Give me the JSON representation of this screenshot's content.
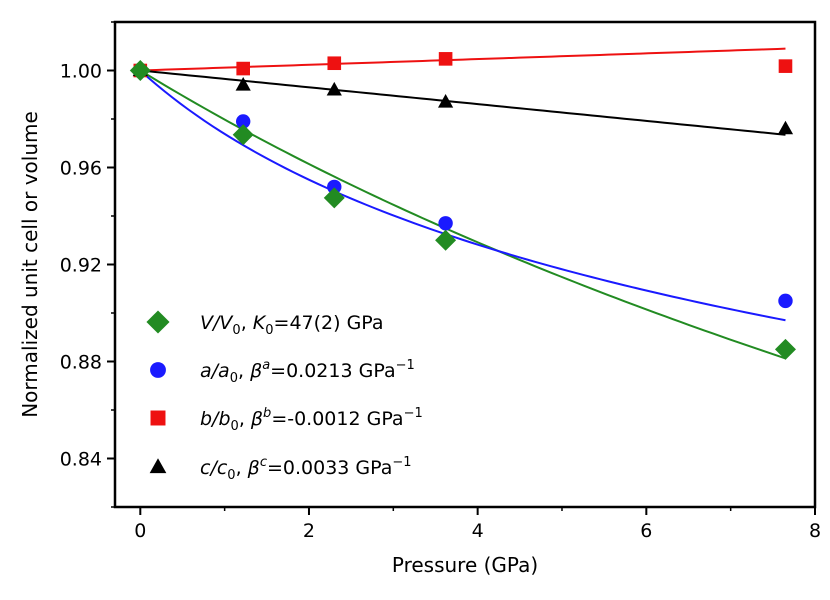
{
  "chart_data": {
    "type": "scatter",
    "xlabel": "Pressure (GPa)",
    "ylabel": "Normalized unit cell or volume",
    "xlim": [
      -0.3,
      8
    ],
    "ylim": [
      0.82,
      1.02
    ],
    "xticks": [
      0,
      2,
      4,
      6,
      8
    ],
    "xtick_labels": [
      "0",
      "2",
      "4",
      "6",
      "8"
    ],
    "yticks": [
      0.84,
      0.88,
      0.92,
      0.96,
      1.0
    ],
    "ytick_labels": [
      "0.84",
      "0.88",
      "0.92",
      "0.96",
      "1.00"
    ],
    "grid": false,
    "legend_position": "lower-left",
    "series": [
      {
        "key": "V",
        "marker": "diamond",
        "color": "#228B22",
        "legend": {
          "ratio": "V/V",
          "sub": "0",
          "rest_pre": ", K",
          "rest_sub": "0",
          "rest_post": "=47(2) GPa"
        },
        "x": [
          0,
          1.22,
          2.3,
          3.62,
          7.65
        ],
        "y": [
          1.0,
          0.9735,
          0.9475,
          0.93,
          0.885
        ],
        "fit": {
          "kind": "birch-murnaghan",
          "K0": 47,
          "Kp": 4
        }
      },
      {
        "key": "a",
        "marker": "circle",
        "color": "#1a1aff",
        "legend": {
          "ratio": "a/a",
          "sub": "0",
          "beta": "a",
          "value": "=0.0213 GPa"
        },
        "x": [
          0,
          1.22,
          2.3,
          3.62,
          7.65
        ],
        "y": [
          1.0,
          0.979,
          0.952,
          0.937,
          0.905
        ],
        "fit": {
          "kind": "power",
          "y_end": 0.897
        }
      },
      {
        "key": "b",
        "marker": "square",
        "color": "#ee1111",
        "legend": {
          "ratio": "b/b",
          "sub": "0",
          "beta": "b",
          "value": "=-0.0012 GPa"
        },
        "x": [
          0,
          1.22,
          2.3,
          3.62,
          7.65
        ],
        "y": [
          1.0,
          1.0008,
          1.003,
          1.0048,
          1.0018
        ],
        "fit": {
          "kind": "linear",
          "y_end": 1.009
        }
      },
      {
        "key": "c",
        "marker": "triangle",
        "color": "#000000",
        "legend": {
          "ratio": "c/c",
          "sub": "0",
          "beta": "c",
          "value": "=0.0033 GPa"
        },
        "x": [
          0,
          1.22,
          2.3,
          3.62,
          7.65
        ],
        "y": [
          1.0,
          0.994,
          0.992,
          0.987,
          0.976
        ],
        "fit": {
          "kind": "linear",
          "y_end": 0.9735
        }
      }
    ]
  }
}
